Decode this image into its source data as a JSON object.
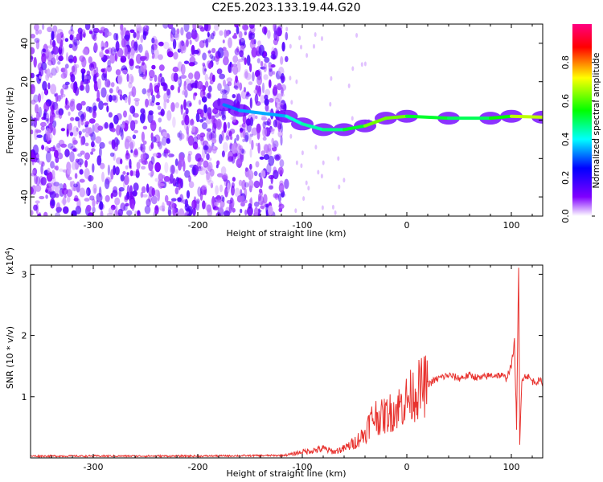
{
  "title": "C2E5.2023.133.19.44.G20",
  "chart_data": [
    {
      "type": "heatmap",
      "xlabel": "Height of straight line (km)",
      "ylabel": "Frequency (Hz)",
      "xlim": [
        -360,
        130
      ],
      "ylim": [
        -50,
        50
      ],
      "x_ticks": [
        -300,
        -200,
        -100,
        0,
        100
      ],
      "y_ticks": [
        -40,
        -20,
        0,
        20,
        40
      ],
      "colorbar": {
        "label": "Normalized spectral amplitude",
        "range": [
          0,
          1
        ],
        "ticks": [
          0.0,
          0.2,
          0.4,
          0.6,
          0.8
        ],
        "colors": [
          "#ffffff",
          "#8000ff",
          "#0000ff",
          "#00ffff",
          "#00ff00",
          "#ffff00",
          "#ff0000",
          "#ff0080"
        ]
      },
      "signal_ridge": [
        {
          "x": -175,
          "y": 8,
          "amp": 0.35
        },
        {
          "x": -160,
          "y": 5,
          "amp": 0.3
        },
        {
          "x": -115,
          "y": 2,
          "amp": 0.4
        },
        {
          "x": -100,
          "y": -2,
          "amp": 0.45
        },
        {
          "x": -80,
          "y": -5,
          "amp": 0.45
        },
        {
          "x": -60,
          "y": -5,
          "amp": 0.5
        },
        {
          "x": -40,
          "y": -3,
          "amp": 0.55
        },
        {
          "x": -20,
          "y": 1,
          "amp": 0.7
        },
        {
          "x": 0,
          "y": 2,
          "amp": 0.55
        },
        {
          "x": 40,
          "y": 1,
          "amp": 0.5
        },
        {
          "x": 80,
          "y": 1,
          "amp": 0.5
        },
        {
          "x": 100,
          "y": 2,
          "amp": 0.6
        },
        {
          "x": 130,
          "y": 1.5,
          "amp": 0.75
        }
      ]
    },
    {
      "type": "line",
      "xlabel": "Height of straight line (km)",
      "ylabel": "SNR (10 * v/v)",
      "y_multiplier": "(x10",
      "y_multiplier_exp": "4",
      "y_multiplier_close": ")",
      "xlim": [
        -360,
        130
      ],
      "ylim": [
        0,
        3.15
      ],
      "x_ticks": [
        -300,
        -200,
        -100,
        0,
        100
      ],
      "y_ticks": [
        1,
        2,
        3
      ],
      "series": [
        {
          "color": "#e8332f",
          "x": [
            -360,
            -300,
            -200,
            -120,
            -110,
            -100,
            -90,
            -80,
            -70,
            -60,
            -50,
            -40,
            -35,
            -30,
            -25,
            -20,
            -10,
            0,
            10,
            20,
            30,
            40,
            50,
            60,
            70,
            80,
            90,
            95,
            100,
            103,
            105,
            107,
            108,
            110,
            115,
            120,
            130
          ],
          "y": [
            0.03,
            0.03,
            0.03,
            0.04,
            0.06,
            0.1,
            0.12,
            0.15,
            0.1,
            0.15,
            0.25,
            0.4,
            0.6,
            0.7,
            0.65,
            0.7,
            0.8,
            0.95,
            1.1,
            1.2,
            1.3,
            1.35,
            1.3,
            1.35,
            1.3,
            1.35,
            1.35,
            1.3,
            1.5,
            1.9,
            0.5,
            3.1,
            0.2,
            1.3,
            1.35,
            1.25,
            1.25
          ]
        }
      ]
    }
  ]
}
